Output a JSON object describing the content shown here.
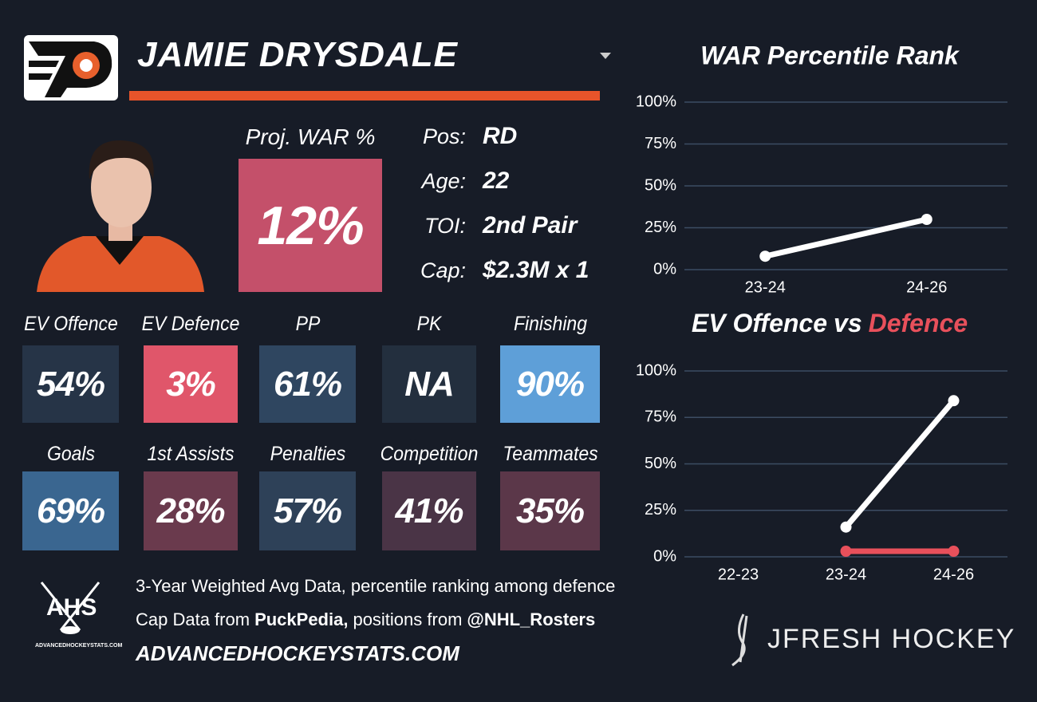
{
  "header": {
    "name": "JAMIE DRYSDALE"
  },
  "proj_war": {
    "label": "Proj. WAR %",
    "value": "12%",
    "color": "#c4506a"
  },
  "info": [
    {
      "label": "Pos:",
      "value": "RD"
    },
    {
      "label": "Age:",
      "value": "22"
    },
    {
      "label": "TOI:",
      "value": "2nd Pair"
    },
    {
      "label": "Cap:",
      "value": "$2.3M x 1"
    }
  ],
  "tiles": [
    {
      "label": "EV Offence",
      "value": "54%",
      "color": "#263447"
    },
    {
      "label": "EV Defence",
      "value": "3%",
      "color": "#e0566a"
    },
    {
      "label": "PP",
      "value": "61%",
      "color": "#2f4660"
    },
    {
      "label": "PK",
      "value": "NA",
      "color": "#232f3e"
    },
    {
      "label": "Finishing",
      "value": "90%",
      "color": "#5e9fd8"
    },
    {
      "label": "Goals",
      "value": "69%",
      "color": "#3a6690"
    },
    {
      "label": "1st Assists",
      "value": "28%",
      "color": "#6a3a4d"
    },
    {
      "label": "Penalties",
      "value": "57%",
      "color": "#2e4158"
    },
    {
      "label": "Competition",
      "value": "41%",
      "color": "#4a3446"
    },
    {
      "label": "Teammates",
      "value": "35%",
      "color": "#5b3749"
    }
  ],
  "footer": {
    "line1": "3-Year Weighted Avg Data, percentile ranking among defence",
    "line2": [
      {
        "text": "Cap Data from"
      },
      {
        "text": "PuckPedia,",
        "bold": true
      },
      {
        "text": "positions from"
      },
      {
        "text": "@NHL_Rosters",
        "bold": true
      }
    ],
    "url": "ADVANCEDHOCKEYSTATS.COM",
    "ahs_logo": "AHS",
    "ahs_small": "ADVANCEDHOCKEYSTATS.COM",
    "brand": "JFRESH HOCKEY"
  },
  "chart_data": [
    {
      "type": "line",
      "title": "WAR Percentile Rank",
      "categories": [
        "23-24",
        "24-26"
      ],
      "series": [
        {
          "color": "#ffffff",
          "values": [
            8,
            30
          ]
        }
      ],
      "ylim": [
        0,
        100
      ],
      "yticks": [
        {
          "value": 0,
          "label": "0%"
        },
        {
          "value": 25,
          "label": "25%"
        },
        {
          "value": 50,
          "label": "50%"
        },
        {
          "value": 75,
          "label": "75%"
        },
        {
          "value": 100,
          "label": "100%"
        }
      ],
      "grid": true
    },
    {
      "type": "line",
      "title_joiner": "vs",
      "categories": [
        "22-23",
        "23-24",
        "24-26"
      ],
      "series": [
        {
          "name": "EV Offence",
          "color": "#ffffff",
          "values": [
            null,
            16,
            84
          ]
        },
        {
          "name": "Defence",
          "color": "#e8505b",
          "values": [
            null,
            3,
            3
          ]
        }
      ],
      "ylim": [
        0,
        100
      ],
      "yticks": [
        {
          "value": 0,
          "label": "0%"
        },
        {
          "value": 25,
          "label": "25%"
        },
        {
          "value": 50,
          "label": "50%"
        },
        {
          "value": 75,
          "label": "75%"
        },
        {
          "value": 100,
          "label": "100%"
        }
      ],
      "grid": true
    }
  ]
}
